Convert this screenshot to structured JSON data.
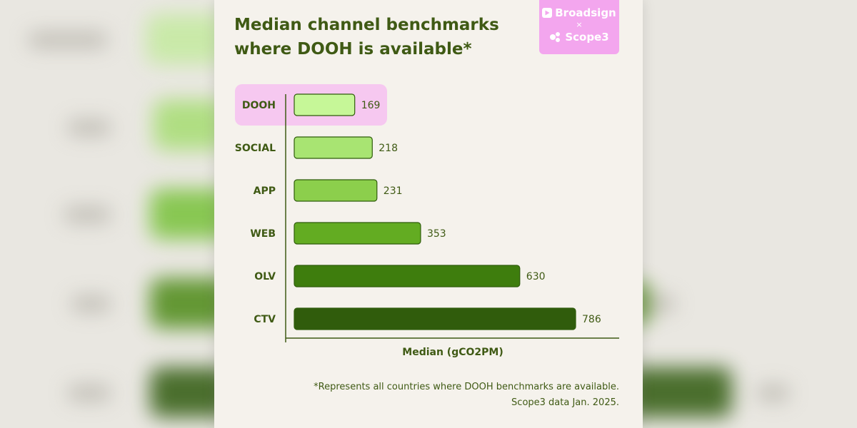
{
  "header": {
    "title_line1": "Median channel benchmarks",
    "title_line2": "where DOOH is available*"
  },
  "logo": {
    "brand1": "Broadsign",
    "separator": "×",
    "brand2": "Scope3"
  },
  "footnote": {
    "line1": "*Represents all countries where DOOH benchmarks are available.",
    "line2": "Scope3 data Jan. 2025."
  },
  "colors": {
    "title": "#3f5a14",
    "highlight": "#f6c8f0",
    "logo_bg": "#f3a6ee",
    "card_bg": "#f5f2ec"
  },
  "chart_data": {
    "type": "bar",
    "orientation": "horizontal",
    "categories": [
      "DOOH",
      "SOCIAL",
      "APP",
      "WEB",
      "OLV",
      "CTV"
    ],
    "values": [
      169,
      218,
      231,
      353,
      630,
      786
    ],
    "series": [
      {
        "values": [
          169,
          218,
          231,
          353,
          630,
          786
        ]
      }
    ],
    "bar_colors": [
      "#c6f798",
      "#a8e472",
      "#8ccf4c",
      "#63ac22",
      "#3e7d0d",
      "#305c0c"
    ],
    "highlight_category": "DOOH",
    "xlabel": "Median (gCO2PM)",
    "ylabel": "",
    "xlim": [
      0,
      800
    ],
    "grid": false,
    "legend": "none"
  }
}
